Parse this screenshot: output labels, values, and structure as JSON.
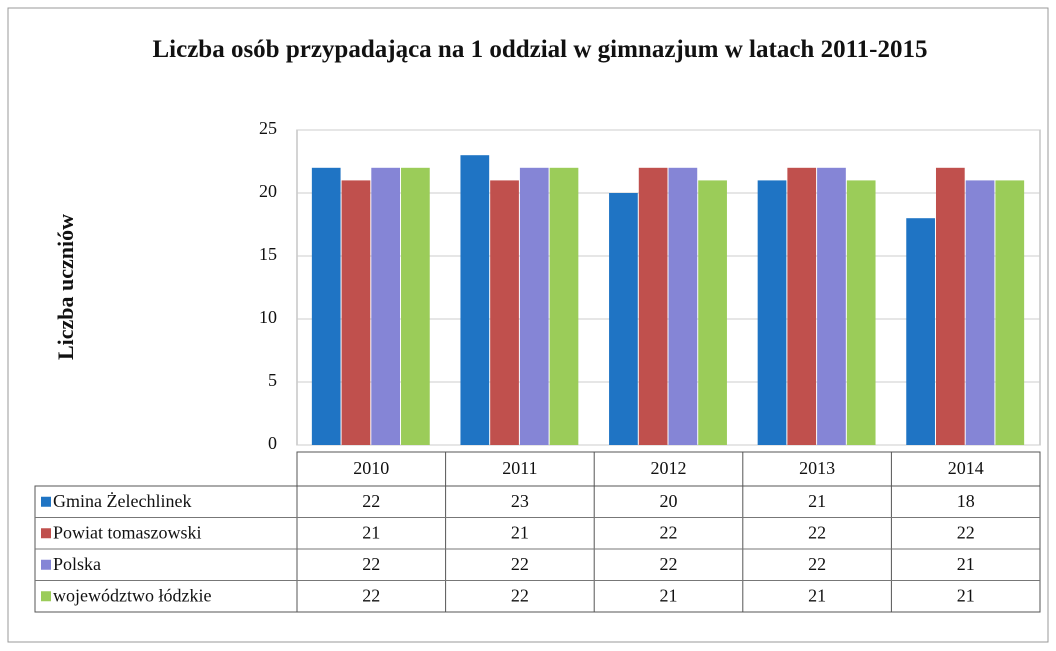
{
  "chart_data": {
    "type": "bar",
    "title": "Liczba osób przypadająca na 1 oddzial w gimnazjum w latach 2011-2015",
    "y_label": "Liczba uczniów",
    "categories": [
      "2010",
      "2011",
      "2012",
      "2013",
      "2014"
    ],
    "series": [
      {
        "name": "Gmina Żelechlinek",
        "color": "#1f74c4",
        "values": [
          22,
          23,
          20,
          21,
          18
        ]
      },
      {
        "name": "Powiat tomaszowski",
        "color": "#c0504d",
        "values": [
          21,
          21,
          22,
          22,
          22
        ]
      },
      {
        "name": "Polska",
        "color": "#8585d6",
        "values": [
          22,
          22,
          22,
          22,
          21
        ]
      },
      {
        "name": "województwo łódzkie",
        "color": "#9bcc59",
        "values": [
          22,
          22,
          21,
          21,
          21
        ]
      }
    ],
    "ylim": [
      0,
      25
    ],
    "yticks": [
      0,
      5,
      10,
      15,
      20,
      25
    ],
    "grid": true
  }
}
